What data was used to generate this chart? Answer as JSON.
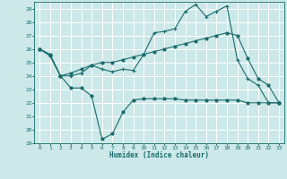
{
  "xlabel": "Humidex (Indice chaleur)",
  "bg_color": "#cce8e8",
  "line_color": "#1a6b6b",
  "grid_color": "#ffffff",
  "xlim": [
    -0.5,
    23.5
  ],
  "ylim": [
    19,
    29.5
  ],
  "xticks": [
    0,
    1,
    2,
    3,
    4,
    5,
    6,
    7,
    8,
    9,
    10,
    11,
    12,
    13,
    14,
    15,
    16,
    17,
    18,
    19,
    20,
    21,
    22,
    23
  ],
  "yticks": [
    19,
    20,
    21,
    22,
    23,
    24,
    25,
    26,
    27,
    28,
    29
  ],
  "line1_x": [
    0,
    1,
    2,
    3,
    4,
    5,
    6,
    7,
    8,
    9,
    10,
    11,
    12,
    13,
    14,
    15,
    16,
    17,
    18,
    19,
    20,
    21,
    22,
    23
  ],
  "line1_y": [
    26.0,
    25.6,
    24.0,
    23.1,
    23.1,
    22.5,
    19.3,
    19.7,
    21.3,
    22.2,
    22.3,
    22.3,
    22.3,
    22.3,
    22.2,
    22.2,
    22.2,
    22.2,
    22.2,
    22.2,
    22.0,
    22.0,
    22.0,
    22.0
  ],
  "line2_x": [
    0,
    1,
    2,
    3,
    4,
    5,
    6,
    7,
    8,
    9,
    10,
    11,
    12,
    13,
    14,
    15,
    16,
    17,
    18,
    19,
    20,
    21,
    22,
    23
  ],
  "line2_y": [
    26.0,
    25.5,
    24.0,
    24.0,
    24.2,
    24.8,
    24.5,
    24.3,
    24.5,
    24.4,
    25.6,
    27.2,
    27.3,
    27.5,
    28.8,
    29.3,
    28.4,
    28.8,
    29.2,
    25.2,
    23.8,
    23.3,
    22.0,
    22.0
  ],
  "line3_x": [
    0,
    1,
    2,
    3,
    4,
    5,
    6,
    7,
    8,
    9,
    10,
    11,
    12,
    13,
    14,
    15,
    16,
    17,
    18,
    19,
    20,
    21,
    22,
    23
  ],
  "line3_y": [
    26.0,
    25.5,
    24.0,
    24.2,
    24.5,
    24.8,
    25.0,
    25.0,
    25.2,
    25.4,
    25.6,
    25.8,
    26.0,
    26.2,
    26.4,
    26.6,
    26.8,
    27.0,
    27.2,
    27.0,
    25.3,
    23.8,
    23.3,
    22.0
  ]
}
